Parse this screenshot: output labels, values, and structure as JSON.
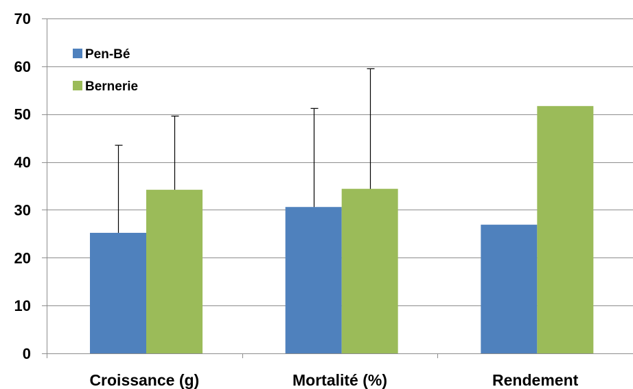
{
  "chart_data": {
    "type": "bar",
    "categories": [
      "Croissance (g)",
      "Mortalité (%)",
      "Rendement"
    ],
    "series": [
      {
        "name": "Pen-Bé",
        "color": "#4F81BD",
        "values": [
          25.2,
          30.6,
          26.9
        ],
        "errors": [
          18.3,
          20.6,
          null
        ]
      },
      {
        "name": "Bernerie",
        "color": "#9BBB59",
        "values": [
          34.2,
          34.4,
          51.7
        ],
        "errors": [
          15.4,
          25.1,
          null
        ]
      }
    ],
    "ylim": [
      0,
      70
    ],
    "yticks": [
      "0",
      "10",
      "20",
      "30",
      "40",
      "50",
      "60",
      "70"
    ],
    "title": "",
    "xlabel": "",
    "ylabel": "",
    "grid": true,
    "legend_position": "top-left"
  }
}
